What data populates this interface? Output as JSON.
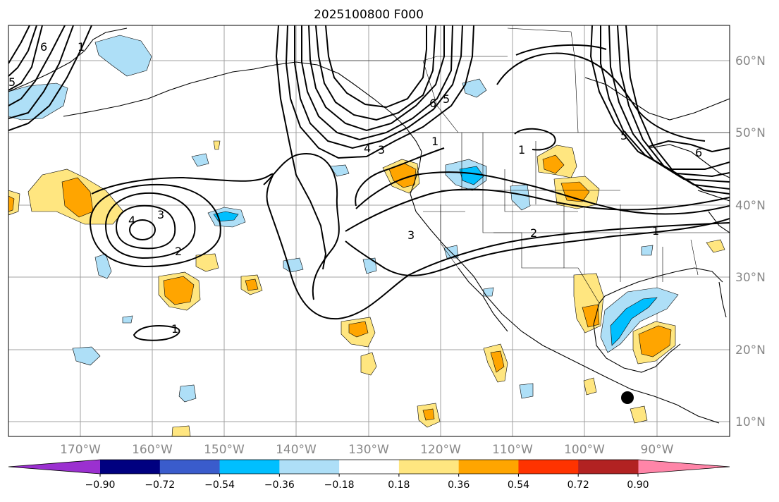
{
  "title": "2025100800 F000",
  "latitude_labels": [
    "60°N",
    "50°N",
    "40°N",
    "30°N",
    "20°N",
    "10°N"
  ],
  "longitude_labels": [
    "170°W",
    "160°W",
    "150°W",
    "140°W",
    "130°W",
    "120°W",
    "110°W",
    "100°W",
    "90°W"
  ],
  "colorbar": {
    "tick_labels": [
      "−0.90",
      "−0.72",
      "−0.54",
      "−0.36",
      "−0.18",
      "0.18",
      "0.36",
      "0.54",
      "0.72",
      "0.90"
    ],
    "colors": [
      "#9b30d0",
      "#000080",
      "#3a5ccc",
      "#00bfff",
      "#aedff7",
      "#ffffff",
      "#ffe680",
      "#ffa500",
      "#ff3300",
      "#b22222",
      "#ff85a8"
    ]
  },
  "contour_labels": [
    "6",
    "5",
    "6",
    "5",
    "4",
    "3",
    "1",
    "1",
    "3",
    "4",
    "2",
    "3",
    "2",
    "1",
    "1",
    "6",
    "5",
    "1"
  ],
  "marker": "black-dot"
}
